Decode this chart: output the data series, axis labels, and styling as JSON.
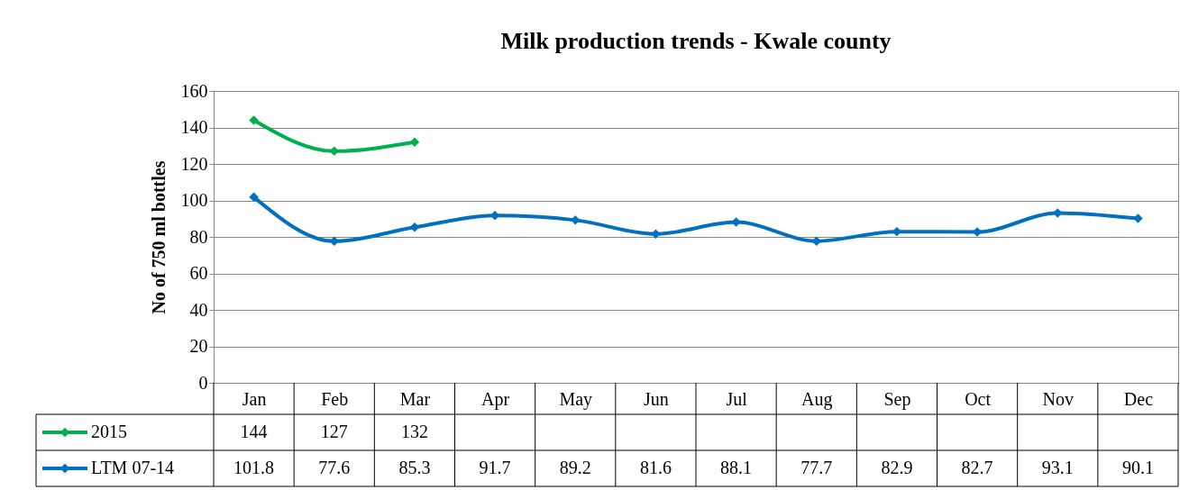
{
  "chart_data": {
    "type": "line",
    "title": "Milk production trends - Kwale county",
    "ylabel": "No of 750 ml bottles",
    "categories": [
      "Jan",
      "Feb",
      "Mar",
      "Apr",
      "May",
      "Jun",
      "Jul",
      "Aug",
      "Sep",
      "Oct",
      "Nov",
      "Dec"
    ],
    "series": [
      {
        "name": "2015",
        "color": "#00b050",
        "values": [
          144,
          127,
          132,
          null,
          null,
          null,
          null,
          null,
          null,
          null,
          null,
          null
        ]
      },
      {
        "name": "LTM 07-14",
        "color": "#0070c0",
        "values": [
          101.8,
          77.6,
          85.3,
          91.7,
          89.2,
          81.6,
          88.1,
          77.7,
          82.9,
          82.7,
          93.1,
          90.1
        ]
      }
    ],
    "ylim": [
      0,
      160
    ],
    "yticks": [
      0,
      20,
      40,
      60,
      80,
      100,
      120,
      140,
      160
    ],
    "grid": "y",
    "marker": "diamond",
    "data_labels": true,
    "legend": "bottom left"
  }
}
